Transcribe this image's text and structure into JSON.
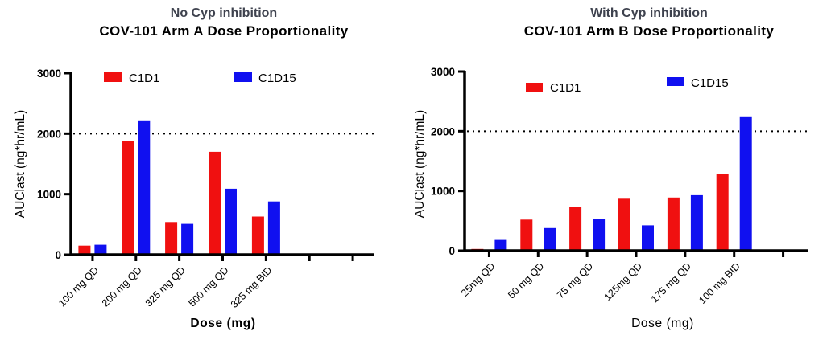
{
  "figure_background": "#ffffff",
  "colors": {
    "c1d1": "#f01010",
    "c1d15": "#1010f0",
    "axis": "#000000",
    "title_primary": "#3e424e",
    "title_secondary": "#000000",
    "reference_line": "#000000"
  },
  "chart_data": [
    {
      "type": "bar",
      "title": "No Cyp inhibition",
      "subtitle": "COV-101 Arm A Dose Proportionality",
      "xlabel": "Dose (mg)",
      "ylabel": "AUClast (ng*hr/mL)",
      "categories": [
        "100 mg QD",
        "200 mg QD",
        "325 mg QD",
        "500 mg QD",
        "325 mg BID"
      ],
      "series": [
        {
          "name": "C1D1",
          "color": "#f01010",
          "values": [
            150,
            1880,
            540,
            1700,
            630
          ]
        },
        {
          "name": "C1D15",
          "color": "#1010f0",
          "values": [
            165,
            2220,
            510,
            1090,
            880
          ]
        }
      ],
      "ylim": [
        0,
        3000
      ],
      "yticks": [
        0,
        1000,
        2000,
        3000
      ],
      "reference_line_y": 2000,
      "x_axis_slots": 7,
      "grid": false,
      "legend": [
        "C1D1",
        "C1D15"
      ],
      "legend_position": "top-inside"
    },
    {
      "type": "bar",
      "title": "With Cyp inhibition",
      "subtitle": "COV-101 Arm B Dose Proportionality",
      "xlabel": "Dose (mg)",
      "ylabel": "AUClast (ng*hr/mL)",
      "categories": [
        "25mg QD",
        "50 mg QD",
        "75 mg QD",
        "125mg QD",
        "175 mg QD",
        "100 mg BID"
      ],
      "series": [
        {
          "name": "C1D1",
          "color": "#f01010",
          "values": [
            30,
            520,
            730,
            870,
            890,
            1290
          ]
        },
        {
          "name": "C1D15",
          "color": "#1010f0",
          "values": [
            180,
            380,
            530,
            425,
            930,
            2250
          ]
        }
      ],
      "ylim": [
        0,
        3000
      ],
      "yticks": [
        0,
        1000,
        2000,
        3000
      ],
      "reference_line_y": 2000,
      "x_axis_slots": 7,
      "grid": false,
      "legend": [
        "C1D1",
        "C1D15"
      ],
      "legend_position": "top-inside"
    }
  ]
}
